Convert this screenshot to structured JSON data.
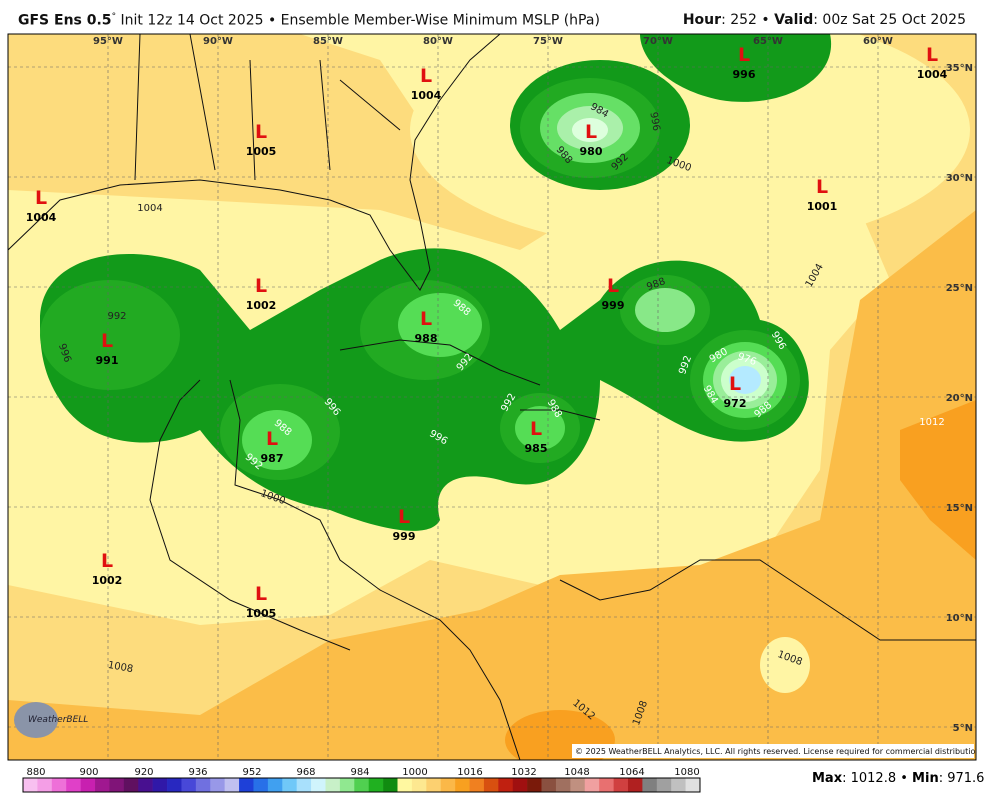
{
  "header": {
    "title_bold": "GFS Ens 0.5",
    "degree": "°",
    "title_rest": "Init 12z 14 Oct 2025 • Ensemble Member-Wise Minimum MSLP (hPa)",
    "hour_label": "Hour",
    "hour_rest": ": 252 • ",
    "valid_label": "Valid",
    "valid_rest": ": 00z Sat 25 Oct 2025"
  },
  "map": {
    "lon_labels": [
      "95°W",
      "90°W",
      "85°W",
      "80°W",
      "75°W",
      "70°W",
      "65°W",
      "60°W"
    ],
    "lat_labels": [
      "35°N",
      "30°N",
      "25°N",
      "20°N",
      "15°N",
      "10°N",
      "5°N"
    ],
    "lows": [
      {
        "mark": "L",
        "value": 1004
      },
      {
        "mark": "L",
        "value": 996
      },
      {
        "mark": "L",
        "value": 1004
      },
      {
        "mark": "L",
        "value": 980
      },
      {
        "mark": "L",
        "value": 1005
      },
      {
        "mark": "L",
        "value": 1004
      },
      {
        "mark": "L",
        "value": 1001
      },
      {
        "mark": "L",
        "value": 1002
      },
      {
        "mark": "L",
        "value": 991
      },
      {
        "mark": "L",
        "value": 988
      },
      {
        "mark": "L",
        "value": 999
      },
      {
        "mark": "L",
        "value": 972
      },
      {
        "mark": "L",
        "value": 987
      },
      {
        "mark": "L",
        "value": 985
      },
      {
        "mark": "L",
        "value": 999
      },
      {
        "mark": "L",
        "value": 1002
      },
      {
        "mark": "L",
        "value": 1005
      }
    ],
    "contour_labels": [
      "1004",
      "992",
      "996",
      "984",
      "988",
      "992",
      "996",
      "1000",
      "988",
      "992",
      "996",
      "996",
      "988",
      "992",
      "1000",
      "988",
      "992",
      "988",
      "992",
      "980",
      "976",
      "984",
      "988",
      "996",
      "1004",
      "1012",
      "1008",
      "1008",
      "1012",
      "1008"
    ],
    "copyright": "© 2025 WeatherBELL Analytics, LLC. All rights reserved. License required for commercial distribution.",
    "logo": "WeatherBELL"
  },
  "colorbar": {
    "ticks": [
      "880",
      "900",
      "920",
      "936",
      "952",
      "968",
      "984",
      "1000",
      "1016",
      "1032",
      "1048",
      "1064",
      "1080"
    ]
  },
  "footer": {
    "max_label": "Max",
    "max_rest": ": 1012.8 • ",
    "min_label": "Min",
    "min_rest": ": 971.6"
  }
}
